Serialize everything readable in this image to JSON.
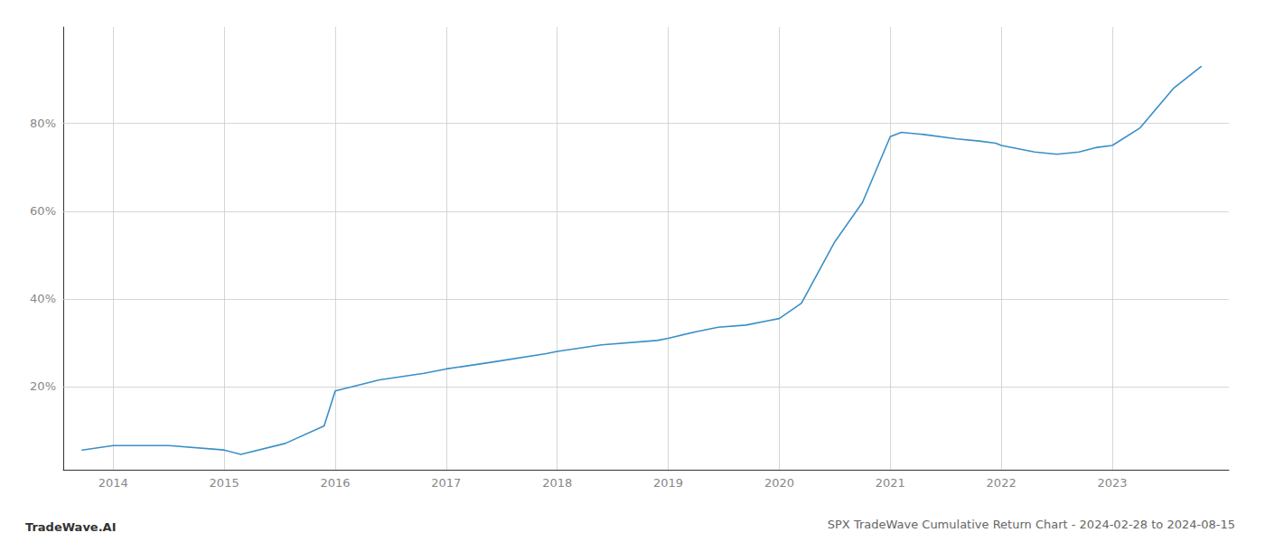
{
  "chart_data": {
    "type": "line",
    "title": "SPX TradeWave Cumulative Return Chart - 2024-02-28 to 2024-08-15",
    "annotations": [
      "TradeWave.AI"
    ],
    "color": "#3a8fc7",
    "grid": true,
    "x": [
      2013.72,
      2014.0,
      2014.5,
      2015.0,
      2015.15,
      2015.55,
      2015.9,
      2016.0,
      2016.4,
      2016.8,
      2017.0,
      2017.4,
      2017.9,
      2018.0,
      2018.4,
      2018.9,
      2019.0,
      2019.25,
      2019.45,
      2019.7,
      2019.9,
      2020.0,
      2020.2,
      2020.5,
      2020.75,
      2021.0,
      2021.1,
      2021.3,
      2021.6,
      2021.8,
      2021.95,
      2022.0,
      2022.3,
      2022.5,
      2022.7,
      2022.85,
      2023.0,
      2023.25,
      2023.55,
      2023.8
    ],
    "values": [
      5.5,
      6.5,
      6.5,
      5.5,
      4.5,
      7.0,
      11.0,
      19.0,
      21.5,
      23.0,
      24.0,
      25.5,
      27.5,
      28.0,
      29.5,
      30.5,
      31.0,
      32.5,
      33.5,
      34.0,
      35.0,
      35.5,
      39.0,
      53.0,
      62.0,
      77.0,
      78.0,
      77.5,
      76.5,
      76.0,
      75.5,
      75.0,
      73.5,
      73.0,
      73.5,
      74.5,
      75.0,
      79.0,
      88.0,
      93.0
    ],
    "xlim": [
      2013.55,
      2024.05
    ],
    "ylim": [
      1.0,
      102.0
    ],
    "xticks": [
      2014,
      2015,
      2016,
      2017,
      2018,
      2019,
      2020,
      2021,
      2022,
      2023
    ],
    "yticks": [
      {
        "value": 20,
        "label": "20%"
      },
      {
        "value": 40,
        "label": "40%"
      },
      {
        "value": 60,
        "label": "60%"
      },
      {
        "value": 80,
        "label": "80%"
      }
    ]
  }
}
